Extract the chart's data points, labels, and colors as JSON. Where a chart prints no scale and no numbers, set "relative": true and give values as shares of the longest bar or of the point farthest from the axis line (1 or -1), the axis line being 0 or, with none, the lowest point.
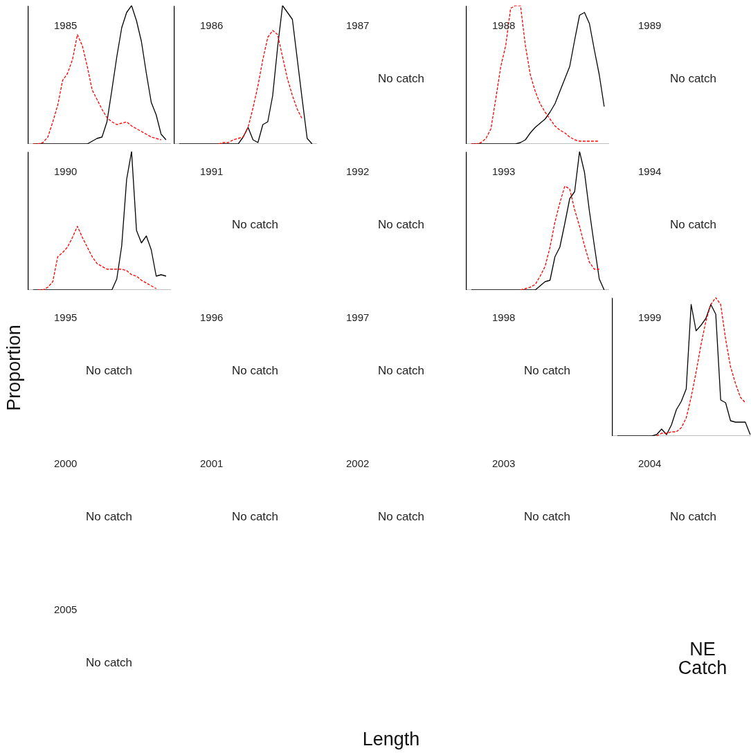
{
  "chart_data": [
    {
      "type": "line",
      "title": "1985",
      "relative": true,
      "categories": [
        null,
        null,
        null,
        null,
        null,
        null,
        null,
        null,
        null,
        null,
        null,
        null,
        null,
        null,
        null,
        null,
        null,
        null,
        null,
        null,
        null,
        null,
        null,
        null,
        null,
        null,
        null,
        null
      ],
      "series": [
        {
          "color": "#000000",
          "line_style": "solid",
          "values": [
            0,
            0,
            0,
            0,
            0,
            0,
            0,
            0,
            0,
            0,
            0,
            0,
            0.02,
            0.04,
            0.05,
            0.16,
            0.39,
            0.63,
            0.84,
            0.95,
            1,
            0.89,
            0.74,
            0.51,
            0.3,
            0.21,
            0.07,
            0.03
          ]
        },
        {
          "color": "#ff0000",
          "line_style": "dashed",
          "values": [
            0,
            0,
            0.01,
            0.05,
            0.16,
            0.28,
            0.46,
            0.51,
            0.61,
            0.79,
            0.71,
            0.56,
            0.39,
            0.32,
            0.25,
            0.19,
            0.16,
            0.14,
            0.15,
            0.16,
            0.13,
            0.11,
            0.09,
            0.07,
            0.05,
            0.04,
            0.03,
            null
          ]
        }
      ]
    },
    {
      "type": "line",
      "title": "1986",
      "relative": true,
      "categories": [
        null,
        null,
        null,
        null,
        null,
        null,
        null,
        null,
        null,
        null,
        null,
        null,
        null,
        null,
        null,
        null,
        null,
        null,
        null,
        null,
        null,
        null,
        null,
        null,
        null,
        null,
        null,
        null
      ],
      "series": [
        {
          "color": "#000000",
          "line_style": "solid",
          "values": [
            0,
            0,
            0,
            0,
            0,
            0,
            0,
            0,
            0,
            0,
            0,
            0,
            0,
            0.05,
            0.12,
            0.03,
            0.01,
            0.14,
            0.16,
            0.35,
            0.7,
            1,
            0.95,
            0.9,
            0.61,
            0.32,
            0.04,
            0
          ]
        },
        {
          "color": "#ff0000",
          "line_style": "dashed",
          "values": [
            null,
            null,
            null,
            null,
            null,
            null,
            null,
            null,
            0,
            0.01,
            0.01,
            0.03,
            0.04,
            0.05,
            0.12,
            0.26,
            0.42,
            0.61,
            0.77,
            0.82,
            0.79,
            0.63,
            0.47,
            0.35,
            0.25,
            0.18,
            null,
            null
          ]
        }
      ]
    },
    {
      "type": "other",
      "title": "1987",
      "annotations": [
        "No catch"
      ]
    },
    {
      "type": "line",
      "title": "1988",
      "relative": true,
      "categories": [
        null,
        null,
        null,
        null,
        null,
        null,
        null,
        null,
        null,
        null,
        null,
        null,
        null,
        null,
        null,
        null,
        null,
        null,
        null,
        null,
        null,
        null,
        null,
        null,
        null,
        null,
        null,
        null
      ],
      "series": [
        {
          "color": "#000000",
          "line_style": "solid",
          "values": [
            0,
            0,
            0,
            0,
            0,
            0,
            0,
            0,
            0,
            0,
            0.01,
            0.03,
            0.08,
            0.12,
            0.15,
            0.18,
            0.23,
            0.29,
            0.38,
            0.47,
            0.56,
            0.75,
            0.93,
            0.95,
            0.87,
            0.68,
            0.5,
            0.27
          ]
        },
        {
          "color": "#ff0000",
          "line_style": "dashed",
          "values": [
            0,
            0,
            0.01,
            0.04,
            0.11,
            0.33,
            0.56,
            0.71,
            0.98,
            1,
            1,
            0.71,
            0.5,
            0.38,
            0.29,
            0.23,
            0.18,
            0.13,
            0.1,
            0.08,
            0.05,
            0.03,
            0.02,
            0.02,
            0.02,
            0.02,
            0.02,
            null
          ]
        }
      ]
    },
    {
      "type": "other",
      "title": "1989",
      "annotations": [
        "No catch"
      ]
    },
    {
      "type": "line",
      "title": "1990",
      "relative": true,
      "categories": [
        null,
        null,
        null,
        null,
        null,
        null,
        null,
        null,
        null,
        null,
        null,
        null,
        null,
        null,
        null,
        null,
        null,
        null,
        null,
        null,
        null,
        null,
        null,
        null,
        null,
        null,
        null,
        null
      ],
      "series": [
        {
          "color": "#000000",
          "line_style": "solid",
          "values": [
            0,
            0,
            0,
            0,
            0,
            0,
            0,
            0,
            0,
            0,
            0,
            0,
            0,
            0,
            0,
            0,
            0,
            0.08,
            0.32,
            0.8,
            1,
            0.43,
            0.34,
            0.39,
            0.29,
            0.1,
            0.11,
            0.1
          ]
        },
        {
          "color": "#ff0000",
          "line_style": "dashed",
          "values": [
            null,
            0,
            0,
            0.02,
            0.06,
            0.24,
            0.27,
            0.31,
            0.38,
            0.46,
            0.38,
            0.31,
            0.24,
            0.19,
            0.17,
            0.15,
            0.15,
            0.15,
            0.15,
            0.14,
            0.11,
            0.1,
            0.07,
            0.05,
            0.03,
            0.01,
            null,
            null
          ]
        }
      ]
    },
    {
      "type": "other",
      "title": "1991",
      "annotations": [
        "No catch"
      ]
    },
    {
      "type": "other",
      "title": "1992",
      "annotations": [
        "No catch"
      ]
    },
    {
      "type": "line",
      "title": "1993",
      "relative": true,
      "categories": [
        null,
        null,
        null,
        null,
        null,
        null,
        null,
        null,
        null,
        null,
        null,
        null,
        null,
        null,
        null,
        null,
        null,
        null,
        null,
        null,
        null,
        null,
        null,
        null,
        null,
        null,
        null,
        null
      ],
      "series": [
        {
          "color": "#000000",
          "line_style": "solid",
          "values": [
            0,
            0,
            0,
            0,
            0,
            0,
            0,
            0,
            0,
            0,
            0,
            0,
            0,
            0,
            0.03,
            0.06,
            0.07,
            0.24,
            0.31,
            0.48,
            0.66,
            0.71,
            1,
            0.85,
            0.57,
            0.32,
            0.08,
            0
          ]
        },
        {
          "color": "#ff0000",
          "line_style": "dashed",
          "values": [
            null,
            null,
            null,
            null,
            null,
            null,
            null,
            null,
            null,
            null,
            0,
            0.01,
            0.02,
            0.04,
            0.1,
            0.17,
            0.31,
            0.49,
            0.63,
            0.75,
            0.73,
            0.58,
            0.46,
            0.32,
            0.2,
            0.15,
            0.15,
            null
          ]
        }
      ]
    },
    {
      "type": "other",
      "title": "1994",
      "annotations": [
        "No catch"
      ]
    },
    {
      "type": "other",
      "title": "1995",
      "annotations": [
        "No catch"
      ]
    },
    {
      "type": "other",
      "title": "1996",
      "annotations": [
        "No catch"
      ]
    },
    {
      "type": "other",
      "title": "1997",
      "annotations": [
        "No catch"
      ]
    },
    {
      "type": "other",
      "title": "1998",
      "annotations": [
        "No catch"
      ]
    },
    {
      "type": "line",
      "title": "1999",
      "relative": true,
      "categories": [
        null,
        null,
        null,
        null,
        null,
        null,
        null,
        null,
        null,
        null,
        null,
        null,
        null,
        null,
        null,
        null,
        null,
        null,
        null,
        null,
        null,
        null,
        null,
        null,
        null,
        null,
        null,
        null
      ],
      "series": [
        {
          "color": "#000000",
          "line_style": "solid",
          "values": [
            0,
            0,
            0,
            0,
            0,
            0,
            0,
            0,
            0.01,
            0.05,
            0.01,
            0.08,
            0.19,
            0.25,
            0.34,
            0.95,
            0.76,
            0.8,
            0.85,
            0.95,
            0.88,
            0.26,
            0.24,
            0.11,
            0.1,
            0.1,
            0.1,
            0.01
          ]
        },
        {
          "color": "#ff0000",
          "line_style": "dashed",
          "values": [
            null,
            null,
            null,
            null,
            null,
            null,
            null,
            null,
            0,
            0.02,
            0.02,
            0.03,
            0.03,
            0.06,
            0.13,
            0.28,
            0.46,
            0.66,
            0.83,
            0.95,
            1,
            0.95,
            0.7,
            0.5,
            0.38,
            0.28,
            0.24,
            null
          ]
        }
      ]
    },
    {
      "type": "other",
      "title": "2000",
      "annotations": [
        "No catch"
      ]
    },
    {
      "type": "other",
      "title": "2001",
      "annotations": [
        "No catch"
      ]
    },
    {
      "type": "other",
      "title": "2002",
      "annotations": [
        "No catch"
      ]
    },
    {
      "type": "other",
      "title": "2003",
      "annotations": [
        "No catch"
      ]
    },
    {
      "type": "other",
      "title": "2004",
      "annotations": [
        "No catch"
      ]
    },
    {
      "type": "other",
      "title": "2005",
      "annotations": [
        "No catch"
      ]
    },
    {
      "type": "other",
      "xlabel": "Length",
      "ylabel": "Proportion",
      "annotations": [
        "NE Catch"
      ]
    }
  ]
}
